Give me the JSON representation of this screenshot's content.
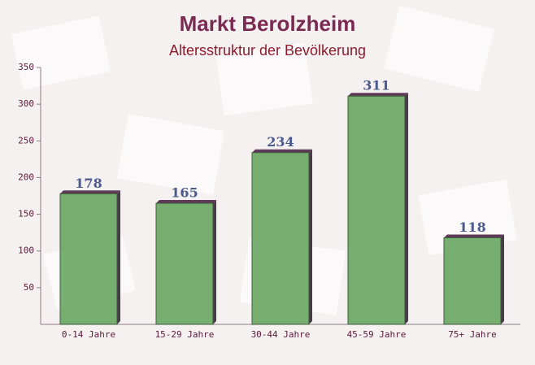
{
  "chart_data": {
    "type": "bar",
    "title": "Markt Berolzheim",
    "subtitle": "Altersstruktur der Bevölkerung",
    "categories": [
      "0-14 Jahre",
      "15-29 Jahre",
      "30-44 Jahre",
      "45-59 Jahre",
      "75+ Jahre"
    ],
    "values": [
      178,
      165,
      234,
      311,
      118
    ],
    "color": "#6aa864",
    "ylim": [
      0,
      350
    ],
    "yticks": [
      50,
      100,
      150,
      200,
      250,
      300,
      350
    ],
    "grid": false
  }
}
